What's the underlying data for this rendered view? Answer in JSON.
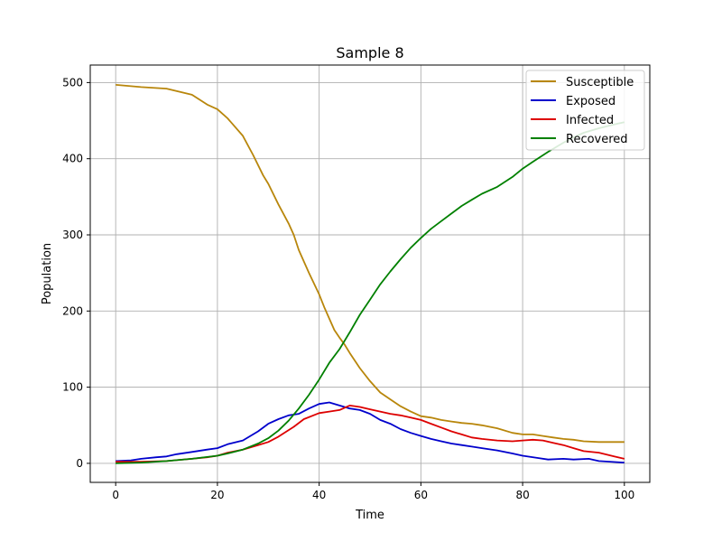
{
  "chart_data": {
    "type": "line",
    "title": "Sample 8",
    "xlabel": "Time",
    "ylabel": "Population",
    "xlim": [
      -5,
      105
    ],
    "ylim": [
      -25,
      523
    ],
    "xticks": [
      0,
      20,
      40,
      60,
      80,
      100
    ],
    "yticks": [
      0,
      100,
      200,
      300,
      400,
      500
    ],
    "grid": true,
    "legend_position": "top-right",
    "series": [
      {
        "name": "Susceptible",
        "color": "#b8860b",
        "x": [
          0,
          5,
          10,
          15,
          18,
          20,
          22,
          25,
          27,
          29,
          30,
          32,
          34,
          35,
          36,
          38,
          40,
          41,
          42,
          43,
          44,
          45,
          46,
          48,
          50,
          52,
          54,
          56,
          58,
          60,
          62,
          64,
          66,
          68,
          70,
          72,
          75,
          78,
          80,
          82,
          84,
          86,
          88,
          90,
          92,
          95,
          97,
          100
        ],
        "y": [
          497,
          494,
          492,
          484,
          471,
          465,
          453,
          430,
          405,
          378,
          367,
          340,
          315,
          300,
          280,
          250,
          222,
          205,
          190,
          175,
          165,
          156,
          145,
          125,
          108,
          93,
          84,
          75,
          68,
          62,
          60,
          57,
          55,
          53,
          52,
          50,
          46,
          40,
          38,
          38,
          36,
          34,
          32,
          31,
          29,
          28,
          28,
          28
        ]
      },
      {
        "name": "Exposed",
        "color": "#0000cc",
        "x": [
          0,
          3,
          5,
          8,
          10,
          12,
          15,
          18,
          20,
          22,
          25,
          28,
          30,
          32,
          34,
          36,
          38,
          40,
          42,
          44,
          46,
          48,
          50,
          52,
          54,
          56,
          58,
          60,
          62,
          64,
          66,
          68,
          70,
          72,
          75,
          78,
          80,
          83,
          85,
          88,
          90,
          93,
          95,
          100
        ],
        "y": [
          3,
          4,
          6,
          8,
          9,
          12,
          15,
          18,
          20,
          25,
          30,
          42,
          52,
          58,
          63,
          65,
          72,
          78,
          80,
          76,
          72,
          70,
          65,
          57,
          52,
          45,
          40,
          36,
          32,
          29,
          26,
          24,
          22,
          20,
          17,
          13,
          10,
          7,
          5,
          6,
          5,
          6,
          3,
          1
        ]
      },
      {
        "name": "Infected",
        "color": "#dd0000",
        "x": [
          0,
          5,
          10,
          15,
          18,
          20,
          22,
          25,
          28,
          30,
          32,
          35,
          37,
          40,
          42,
          44,
          46,
          48,
          50,
          52,
          54,
          56,
          58,
          60,
          62,
          64,
          66,
          68,
          70,
          72,
          75,
          78,
          80,
          82,
          84,
          86,
          88,
          90,
          92,
          95,
          98,
          100
        ],
        "y": [
          2,
          2,
          3,
          6,
          8,
          10,
          14,
          18,
          24,
          28,
          35,
          48,
          58,
          66,
          68,
          70,
          76,
          74,
          71,
          68,
          65,
          63,
          60,
          57,
          52,
          47,
          42,
          38,
          34,
          32,
          30,
          29,
          30,
          31,
          30,
          27,
          24,
          20,
          16,
          14,
          9,
          6
        ]
      },
      {
        "name": "Recovered",
        "color": "#008000",
        "x": [
          0,
          5,
          10,
          15,
          20,
          22,
          25,
          28,
          30,
          32,
          34,
          36,
          38,
          40,
          42,
          44,
          46,
          48,
          50,
          52,
          54,
          56,
          58,
          60,
          62,
          64,
          66,
          68,
          70,
          72,
          75,
          78,
          80,
          82,
          85,
          88,
          90,
          92,
          95,
          98,
          100
        ],
        "y": [
          0,
          1,
          3,
          6,
          10,
          13,
          18,
          26,
          33,
          43,
          56,
          72,
          90,
          110,
          132,
          150,
          172,
          195,
          215,
          235,
          252,
          268,
          283,
          296,
          308,
          318,
          328,
          338,
          346,
          354,
          363,
          376,
          387,
          396,
          409,
          421,
          428,
          434,
          440,
          445,
          448
        ]
      }
    ]
  }
}
